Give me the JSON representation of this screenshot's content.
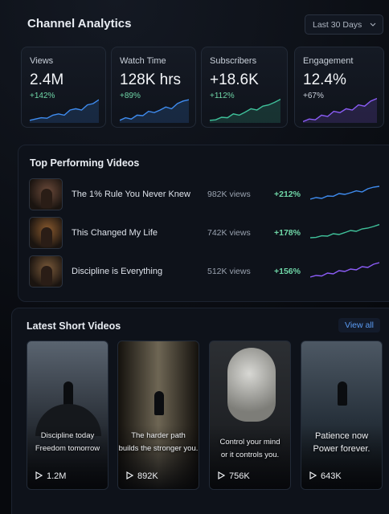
{
  "header": {
    "title": "Channel Analytics",
    "range": "Last 30 Days"
  },
  "stats": [
    {
      "label": "Views",
      "value": "2.4M",
      "change": "+142%"
    },
    {
      "label": "Watch Time",
      "value": "128K hrs",
      "change": "+89%"
    },
    {
      "label": "Subscribers",
      "value": "+18.6K",
      "change": "+112%"
    },
    {
      "label": "Engagement",
      "value": "12.4%",
      "change": "+67%"
    }
  ],
  "top_videos": {
    "title": "Top Performing Videos",
    "rows": [
      {
        "title": "The 1% Rule You Never Knew",
        "views": "982K views",
        "change": "+212%"
      },
      {
        "title": "This Changed My Life",
        "views": "742K views",
        "change": "+178%"
      },
      {
        "title": "Discipline is Everything",
        "views": "512K views",
        "change": "+156%"
      }
    ]
  },
  "shorts": {
    "title": "Latest Short Videos",
    "link": "View all",
    "cards": [
      {
        "caption": [
          "Discipline today",
          "Freedom tomorrow"
        ],
        "views": "1.2M"
      },
      {
        "caption": [
          "The harder path",
          "builds the stronger you."
        ],
        "views": "892K"
      },
      {
        "caption": [
          "Control your mind",
          "or it controls you."
        ],
        "views": "756K"
      },
      {
        "caption": [
          "Patience now",
          "Power forever."
        ],
        "views": "643K"
      }
    ]
  }
}
